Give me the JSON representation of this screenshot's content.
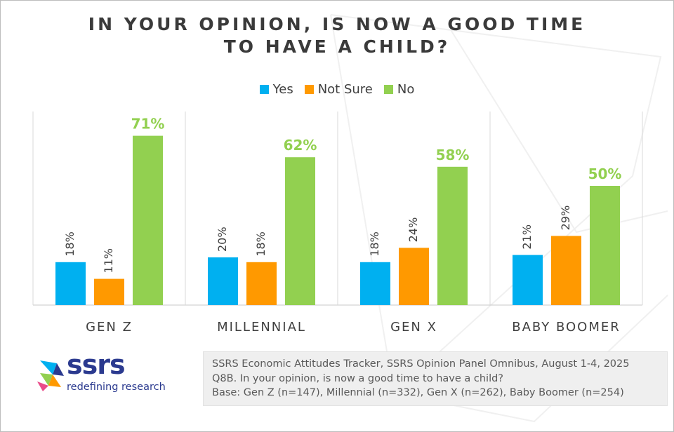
{
  "title": {
    "line1": "IN YOUR OPINION, IS NOW A GOOD TIME",
    "line2": "TO HAVE A CHILD?"
  },
  "colors": {
    "yes": "#00b0f0",
    "not_sure": "#ff9900",
    "no": "#92d050",
    "text": "#404040",
    "logo_blue": "#2b3a8f"
  },
  "chart_data": {
    "type": "bar",
    "title": "IN YOUR OPINION, IS NOW A GOOD TIME TO HAVE A CHILD?",
    "categories": [
      "GEN Z",
      "MILLENNIAL",
      "GEN X",
      "BABY BOOMER"
    ],
    "series": [
      {
        "name": "Yes",
        "values": [
          18,
          20,
          18,
          21
        ],
        "labels": [
          "18%",
          "20%",
          "18%",
          "21%"
        ]
      },
      {
        "name": "Not Sure",
        "values": [
          11,
          18,
          24,
          29
        ],
        "labels": [
          "11%",
          "18%",
          "24%",
          "29%"
        ]
      },
      {
        "name": "No",
        "values": [
          71,
          62,
          58,
          50
        ],
        "labels": [
          "71%",
          "62%",
          "58%",
          "50%"
        ]
      }
    ],
    "xlabel": "",
    "ylabel": "",
    "ylim": [
      0,
      80
    ],
    "grid": false,
    "legend": "top-center"
  },
  "source": {
    "line1": "SSRS Economic Attitudes Tracker, SSRS Opinion Panel Omnibus, August 1-4, 2025",
    "line2": "Q8B. In your opinion, is now a good time to have a child?",
    "line3": "Base: Gen Z (n=147), Millennial (n=332), Gen X (n=262), Baby Boomer (n=254)"
  },
  "logo": {
    "name": "ssrs",
    "tagline": "redefining research"
  }
}
